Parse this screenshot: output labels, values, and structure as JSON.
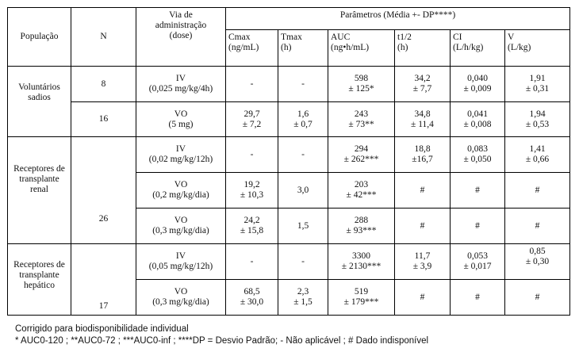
{
  "header": {
    "populacao": "População",
    "n": "N",
    "via_line1": "Via de",
    "via_line2": "administração",
    "via_line3": "(dose)",
    "parametros": "Parâmetros (Média +- DP****)",
    "params": [
      {
        "name": "Cmax",
        "unit": "(ng/mL)"
      },
      {
        "name": "Tmax",
        "unit": "(h)"
      },
      {
        "name": "AUC",
        "unit": "(ng•h/mL)"
      },
      {
        "name": "t1/2",
        "unit": "(h)"
      },
      {
        "name": "CI",
        "unit": "(L/h/kg)"
      },
      {
        "name": "V",
        "unit": "(L/kg)"
      }
    ]
  },
  "groups": [
    {
      "pop_line1": "Voluntários",
      "pop_line2": "sadios",
      "rows": [
        {
          "n": "8",
          "via": "IV",
          "dose": "(0,025 mg/kg/4h)",
          "cmax": [
            "-",
            ""
          ],
          "tmax": [
            "-",
            ""
          ],
          "auc": [
            "598",
            "± 125*"
          ],
          "t12": [
            "34,2",
            "± 7,7"
          ],
          "ci": [
            "0,040",
            "± 0,009"
          ],
          "v": [
            "1,91",
            "± 0,31"
          ]
        },
        {
          "n": "16",
          "via": "VO",
          "dose": "(5 mg)",
          "cmax": [
            "29,7",
            "± 7,2"
          ],
          "tmax": [
            "1,6",
            "± 0,7"
          ],
          "auc": [
            "243",
            "± 73**"
          ],
          "t12": [
            "34,8",
            "± 11,4"
          ],
          "ci": [
            "0,041",
            "± 0,008"
          ],
          "v": [
            "1,94",
            "± 0,53"
          ]
        }
      ]
    },
    {
      "pop_line1": "Receptores de",
      "pop_line2": "transplante",
      "pop_line3": "renal",
      "n": "26",
      "rows": [
        {
          "via": "IV",
          "dose": "(0,02 mg/kg/12h)",
          "cmax": [
            "-",
            ""
          ],
          "tmax": [
            "-",
            ""
          ],
          "auc": [
            "294",
            "± 262***"
          ],
          "t12": [
            "18,8",
            "±16,7"
          ],
          "ci": [
            "0,083",
            "± 0,050"
          ],
          "v": [
            "1,41",
            "± 0,66"
          ]
        },
        {
          "via": "VO",
          "dose": "(0,2 mg/kg/dia)",
          "cmax": [
            "19,2",
            "± 10,3"
          ],
          "tmax": [
            "3,0",
            ""
          ],
          "auc": [
            "203",
            "± 42***"
          ],
          "t12": [
            "#",
            ""
          ],
          "ci": [
            "#",
            ""
          ],
          "v": [
            "#",
            ""
          ]
        },
        {
          "via": "VO",
          "dose": "(0,3 mg/kg/dia)",
          "cmax": [
            "24,2",
            "± 15,8"
          ],
          "tmax": [
            "1,5",
            ""
          ],
          "auc": [
            "288",
            "± 93***"
          ],
          "t12": [
            "#",
            ""
          ],
          "ci": [
            "#",
            ""
          ],
          "v": [
            "#",
            ""
          ]
        }
      ]
    },
    {
      "pop_line1": "Receptores de",
      "pop_line2": "transplante",
      "pop_line3": "hepático",
      "n": "17",
      "rows": [
        {
          "via": "IV",
          "dose": "(0,05 mg/kg/12h)",
          "cmax": [
            "-",
            ""
          ],
          "tmax": [
            "-",
            ""
          ],
          "auc": [
            "3300",
            "± 2130***"
          ],
          "t12": [
            "11,7",
            "± 3,9"
          ],
          "ci": [
            "0,053",
            "± 0,017"
          ],
          "v": [
            "0,85",
            "± 0,30"
          ]
        },
        {
          "via": "VO",
          "dose": "(0,3 mg/kg/dia)",
          "cmax": [
            "68,5",
            "± 30,0"
          ],
          "tmax": [
            "2,3",
            "± 1,5"
          ],
          "auc": [
            "519",
            "± 179***"
          ],
          "t12": [
            "#",
            ""
          ],
          "ci": [
            "#",
            ""
          ],
          "v": [
            "#",
            ""
          ]
        }
      ]
    }
  ],
  "footnotes": {
    "line1": "Corrigido para biodisponibilidade individual",
    "line2": "* AUC0-120 ; **AUC0-72 ; ***AUC0-inf ; ****DP = Desvio Padrão; - Não aplicável ; # Dado indisponível"
  }
}
